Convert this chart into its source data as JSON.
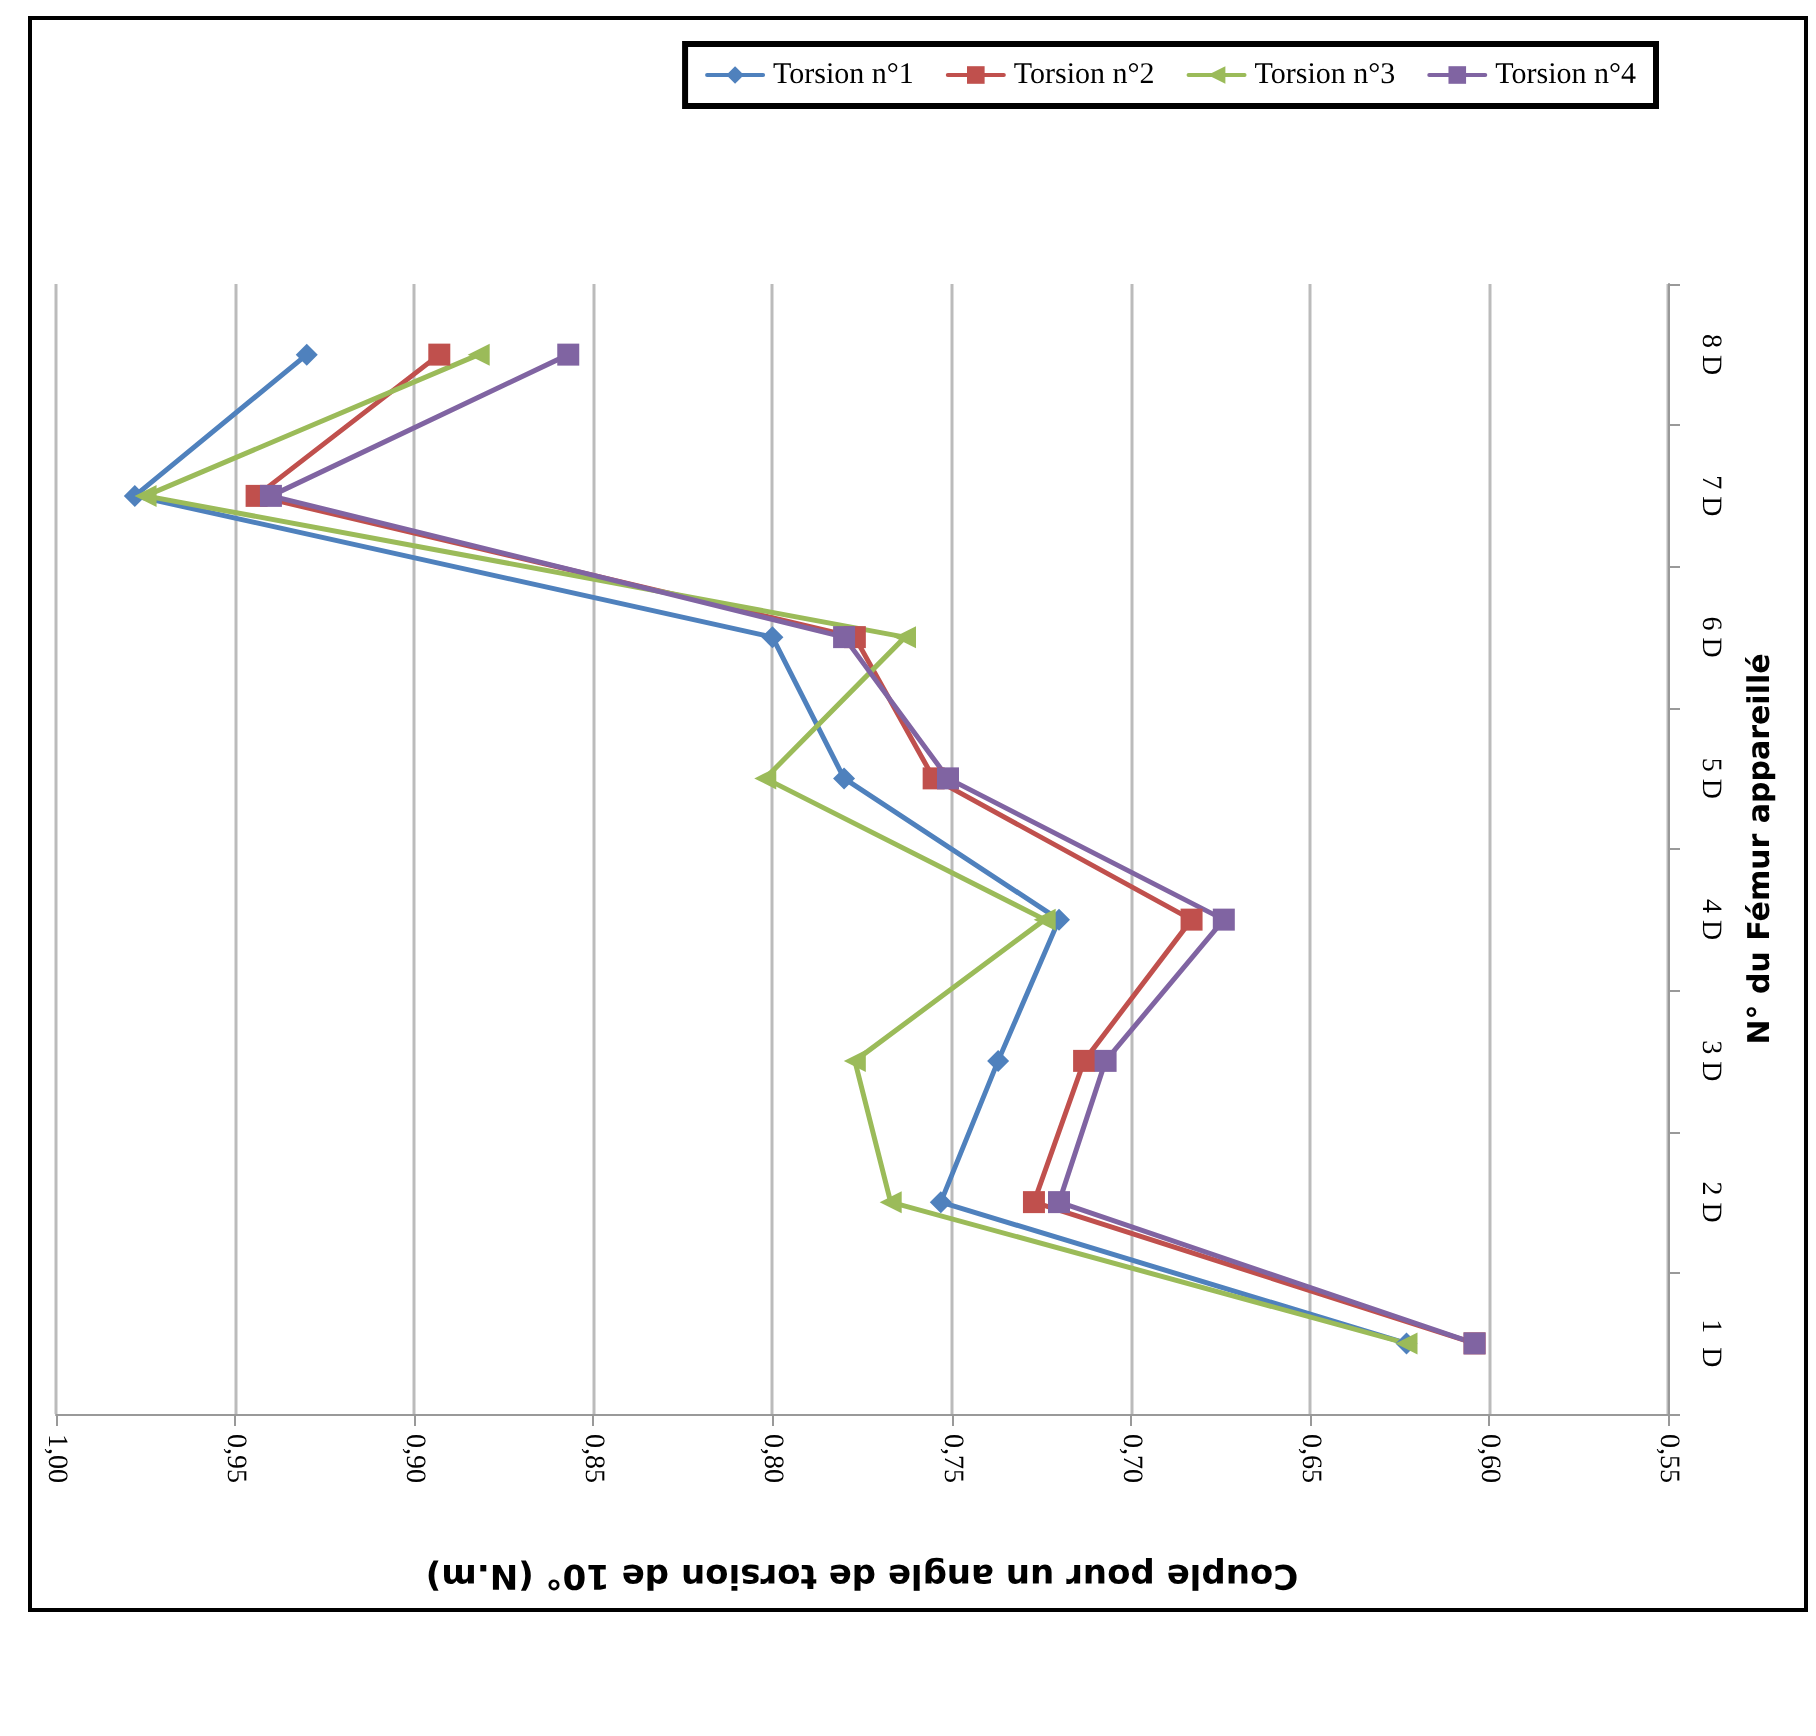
{
  "chart_data": {
    "type": "line",
    "orientation": "horizontal",
    "xlabel": "Couple pour un angle de torsion de 10° (N.m)",
    "ylabel": "N° du Fémur appareillé",
    "categories": [
      "8 D",
      "7 D",
      "6 D",
      "5 D",
      "4 D",
      "3 D",
      "2 D",
      "1  D"
    ],
    "series": [
      {
        "name": "Torsion n°1",
        "color": "#4f81bd",
        "marker": "diamond",
        "values": [
          0.93,
          0.978,
          0.8,
          0.78,
          0.72,
          0.737,
          0.753,
          0.623
        ]
      },
      {
        "name": "Torsion n°2",
        "color": "#c0504d",
        "marker": "square",
        "values": [
          0.893,
          0.944,
          0.777,
          0.755,
          0.683,
          0.713,
          0.727,
          0.604
        ]
      },
      {
        "name": "Torsion n°3",
        "color": "#9bbb59",
        "marker": "triangle",
        "values": [
          0.882,
          0.975,
          0.763,
          0.802,
          0.724,
          0.777,
          0.767,
          0.623
        ]
      },
      {
        "name": "Torsion n°4",
        "color": "#8064a2",
        "marker": "square",
        "values": [
          0.857,
          0.94,
          0.78,
          0.751,
          0.674,
          0.707,
          0.72,
          0.604
        ]
      }
    ],
    "xlim": [
      1.0,
      0.55
    ],
    "xticks": [
      {
        "value": 1.0,
        "label": "1,00"
      },
      {
        "value": 0.95,
        "label": "0,95"
      },
      {
        "value": 0.9,
        "label": "0,90"
      },
      {
        "value": 0.85,
        "label": "0,85"
      },
      {
        "value": 0.8,
        "label": "0,80"
      },
      {
        "value": 0.75,
        "label": "0,75"
      },
      {
        "value": 0.7,
        "label": "0,70"
      },
      {
        "value": 0.65,
        "label": "0,65"
      },
      {
        "value": 0.6,
        "label": "0,60"
      },
      {
        "value": 0.55,
        "label": "0,55"
      }
    ],
    "grid": "x",
    "legend": "top right",
    "line_style": "solid"
  }
}
